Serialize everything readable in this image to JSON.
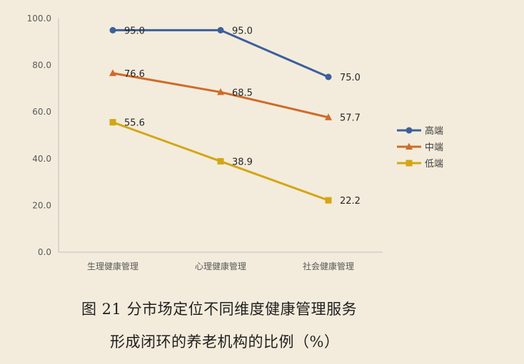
{
  "chart_data": {
    "type": "line",
    "categories": [
      "生理健康管理",
      "心理健康管理",
      "社会健康管理"
    ],
    "series": [
      {
        "name": "高端",
        "values": [
          95.0,
          95.0,
          75.0
        ],
        "color": "#3c5f9b",
        "marker": "circle"
      },
      {
        "name": "中端",
        "values": [
          76.6,
          68.5,
          57.7
        ],
        "color": "#d06b2a",
        "marker": "triangle"
      },
      {
        "name": "低端",
        "values": [
          55.6,
          38.9,
          22.2
        ],
        "color": "#d3a615",
        "marker": "square"
      }
    ],
    "ylim": [
      0,
      100
    ],
    "yticks": [
      "0.0",
      "20.0",
      "40.0",
      "60.0",
      "80.0",
      "100.0"
    ],
    "grid": false,
    "legend": "right",
    "title": ""
  },
  "caption": {
    "line1": "图 21  分市场定位不同维度健康管理服务",
    "line2": "形成闭环的养老机构的比例（%）"
  }
}
